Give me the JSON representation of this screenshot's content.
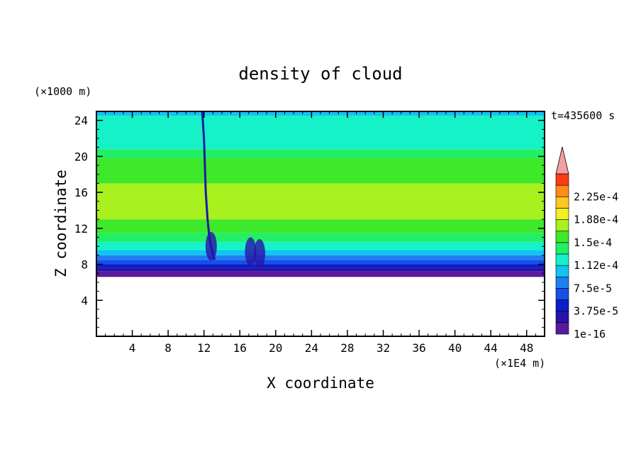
{
  "chart_data": {
    "type": "heatmap",
    "title": "density of cloud",
    "xlabel": "X coordinate",
    "ylabel": "Z coordinate",
    "x_unit": "(×1E4 m)",
    "y_unit": "(×1000 m)",
    "time_label": "t=435600 s",
    "xlim": [
      0,
      50
    ],
    "ylim": [
      0,
      25
    ],
    "xticks": [
      4,
      8,
      12,
      16,
      20,
      24,
      28,
      32,
      36,
      40,
      44,
      48
    ],
    "yticks": [
      4,
      8,
      12,
      16,
      20,
      24
    ],
    "colorbar": {
      "levels": [
        {
          "value": "1e-16",
          "color": "#5a1aa0"
        },
        {
          "value": "",
          "color": "#2a12a8"
        },
        {
          "value": "3.75e-5",
          "color": "#0a1ec8"
        },
        {
          "value": "",
          "color": "#1650e8"
        },
        {
          "value": "7.5e-5",
          "color": "#1e7ff0"
        },
        {
          "value": "",
          "color": "#12c3f2"
        },
        {
          "value": "1.12e-4",
          "color": "#16f2c8"
        },
        {
          "value": "",
          "color": "#22ee66"
        },
        {
          "value": "1.5e-4",
          "color": "#3ee82a"
        },
        {
          "value": "",
          "color": "#a8f01e"
        },
        {
          "value": "1.88e-4",
          "color": "#f0f022"
        },
        {
          "value": "",
          "color": "#ffc81e"
        },
        {
          "value": "2.25e-4",
          "color": "#ff8c14"
        },
        {
          "value": "",
          "color": "#ff3c14"
        },
        {
          "value": "",
          "color": "#f5a0a0"
        }
      ]
    },
    "profile": [
      {
        "z": 0.0,
        "level": -1
      },
      {
        "z": 6.6,
        "level": 0
      },
      {
        "z": 7.2,
        "level": 1
      },
      {
        "z": 7.6,
        "level": 2
      },
      {
        "z": 8.0,
        "level": 3
      },
      {
        "z": 8.5,
        "level": 4
      },
      {
        "z": 9.0,
        "level": 5
      },
      {
        "z": 9.6,
        "level": 6
      },
      {
        "z": 10.5,
        "level": 7
      },
      {
        "z": 11.5,
        "level": 8
      },
      {
        "z": 13.0,
        "level": 9
      },
      {
        "z": 16.0,
        "level": 9
      },
      {
        "z": 17.0,
        "level": 8
      },
      {
        "z": 19.8,
        "level": 7
      },
      {
        "z": 20.8,
        "level": 6
      },
      {
        "z": 24.5,
        "level": 5
      },
      {
        "z": 25.0,
        "level": 5
      }
    ],
    "features": {
      "front_line_x": [
        11.8,
        12.0,
        12.1,
        12.2,
        12.4,
        12.6,
        12.9,
        13.2
      ],
      "front_line_z": [
        25.0,
        22.0,
        19.0,
        16.0,
        13.0,
        11.0,
        9.5,
        8.5
      ],
      "cloud_base_bumps": [
        [
          12.8,
          10.0
        ],
        [
          17.2,
          9.4
        ],
        [
          18.2,
          9.2
        ]
      ]
    }
  }
}
